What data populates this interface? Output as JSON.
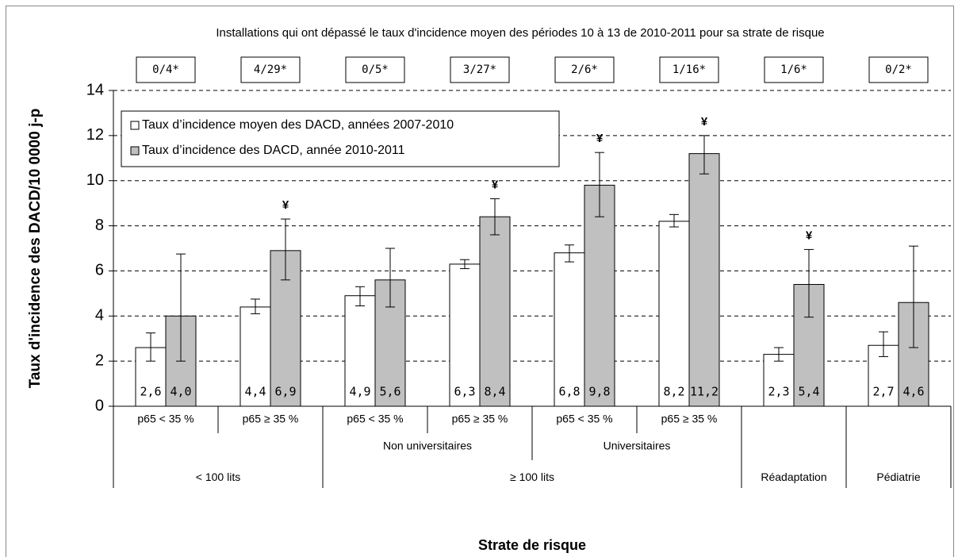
{
  "chart_data": {
    "type": "bar",
    "title": "Installations qui ont dépassé le taux d'incidence moyen  des périodes 10 à 13 de 2010-2011  pour  sa strate de risque",
    "ratios": [
      "0/4*",
      "4/29*",
      "0/5*",
      "3/27*",
      "2/6*",
      "1/16*",
      "1/6*",
      "0/2*"
    ],
    "y_label": "Taux d'incidence des  DACD/10 0000 j-p",
    "x_label": "Strate de risque",
    "categories": [
      "p65 < 35 %",
      "p65 ≥ 35 %",
      "p65 < 35 %",
      "p65 ≥ 35 %",
      "p65 < 35 %",
      "p65 ≥ 35 %",
      null,
      null
    ],
    "categories_level2": [
      null,
      null,
      "Non universitaires",
      "Non universitaires",
      "Universitaires",
      "Universitaires",
      null,
      null
    ],
    "categories_level3": [
      "< 100 lits",
      "< 100 lits",
      "≥ 100 lits",
      "≥ 100 lits",
      "≥ 100 lits",
      "≥ 100 lits",
      "Réadaptation",
      "Pédiatrie"
    ],
    "significance_marker": "¥",
    "series": [
      {
        "name": "Taux d’incidence moyen des DACD, années  2007-2010",
        "color": "#ffffff",
        "values": [
          2.6,
          4.4,
          4.9,
          6.3,
          6.8,
          8.2,
          2.3,
          2.7
        ],
        "value_labels": [
          "2,6",
          "4,4",
          "4,9",
          "6,3",
          "6,8",
          "8,2",
          "2,3",
          "2,7"
        ],
        "lower": [
          2.0,
          4.1,
          4.45,
          6.1,
          6.4,
          7.95,
          2.0,
          2.2
        ],
        "upper": [
          3.25,
          4.75,
          5.3,
          6.5,
          7.15,
          8.5,
          2.6,
          3.3
        ],
        "significant": [
          false,
          false,
          false,
          false,
          false,
          false,
          false,
          false
        ]
      },
      {
        "name": "Taux d’incidence des DACD, année 2010-2011",
        "color": "#c0c0c0",
        "values": [
          4.0,
          6.9,
          5.6,
          8.4,
          9.8,
          11.2,
          5.4,
          4.6
        ],
        "value_labels": [
          "4,0",
          "6,9",
          "5,6",
          "8,4",
          "9,8",
          "11,2",
          "5,4",
          "4,6"
        ],
        "lower": [
          2.0,
          5.6,
          4.4,
          7.6,
          8.4,
          10.3,
          3.95,
          2.6
        ],
        "upper": [
          6.75,
          8.3,
          7.0,
          9.2,
          11.25,
          12.0,
          6.95,
          7.1
        ],
        "significant": [
          false,
          true,
          false,
          true,
          true,
          true,
          true,
          false
        ]
      }
    ],
    "ylim": [
      0,
      14
    ],
    "yticks": [
      0,
      2,
      4,
      6,
      8,
      10,
      12,
      14
    ],
    "grid": true,
    "legend": "upper left"
  }
}
